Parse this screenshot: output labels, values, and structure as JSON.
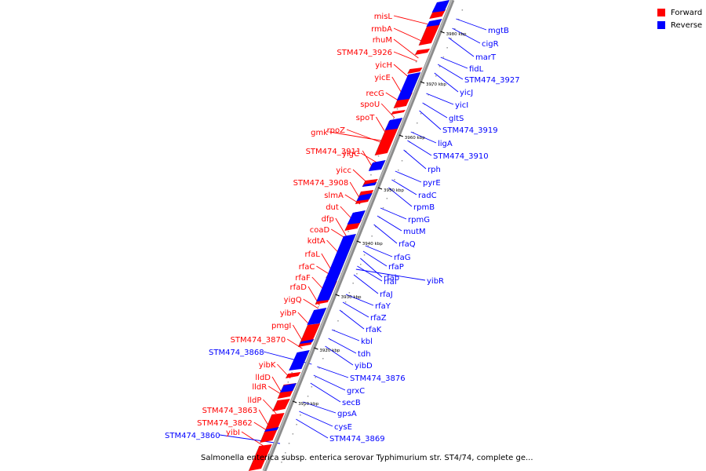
{
  "legend": {
    "forward": {
      "label": "Forward",
      "color": "#ff0000"
    },
    "reverse": {
      "label": "Reverse",
      "color": "#0000ff"
    }
  },
  "caption": "Salmonella enterica subsp. enterica serovar Typhimurium str. ST4/74, complete ge...",
  "scale_ticks": [
    "3980 kbp",
    "3970 kbp",
    "3960 kbp",
    "3950 kbp",
    "3940 kbp",
    "3930 kbp",
    "3920 kbp",
    "3910 kbp"
  ],
  "forward_labels": [
    "misL",
    "rmbA",
    "rhuM",
    "STM474_3926",
    "yicH",
    "yicE",
    "recG",
    "spoU",
    "spoT",
    "gmk",
    "rpoZ",
    "STM474_3911",
    "yigC",
    "yicc",
    "STM474_3908",
    "slmA",
    "dut",
    "dfp",
    "coaD",
    "kdtA",
    "rfaL",
    "rfaC",
    "rfaF",
    "rfaD",
    "yigQ",
    "yibP",
    "pmgI",
    "STM474_3870",
    "yibK",
    "lldD",
    "lldR",
    "lldP",
    "STM474_3863",
    "STM474_3862",
    "yibI"
  ],
  "reverse_labels": [
    "mgtB",
    "cigR",
    "marT",
    "fidL",
    "STM474_3927",
    "yicJ",
    "yicI",
    "gltS",
    "STM474_3919",
    "ligA",
    "STM474_3910",
    "rph",
    "pyrE",
    "radC",
    "rpmB",
    "rpmG",
    "mutM",
    "rfaQ",
    "rfaG",
    "rfaP",
    "rfab",
    "yibR",
    "rfaI",
    "rfaJ",
    "rfaY",
    "rfaZ",
    "rfaK",
    "kbl",
    "tdh",
    "yibD",
    "STM474_3876",
    "grxC",
    "secB",
    "gpsA",
    "cysE",
    "STM474_3869",
    "STM474_3868",
    "STM474_3860"
  ]
}
